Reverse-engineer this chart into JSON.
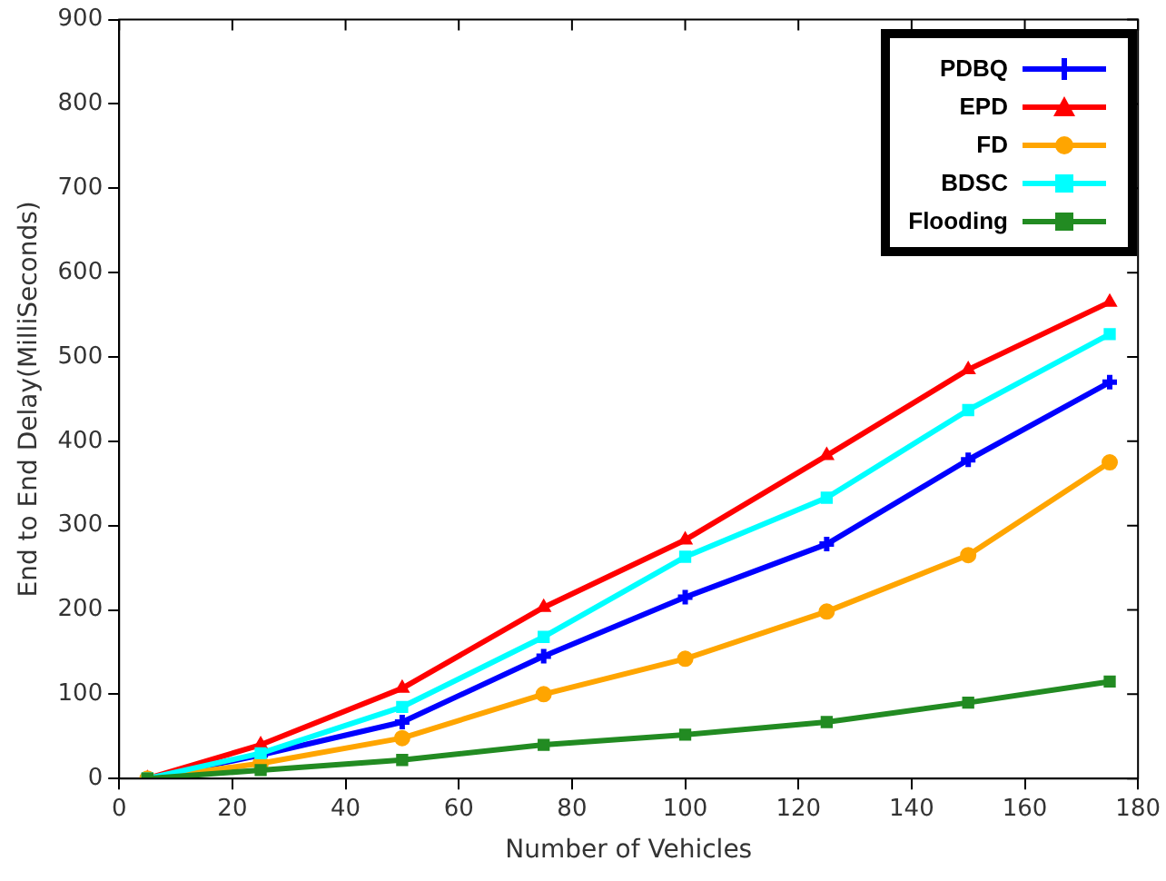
{
  "chart_data": {
    "type": "line",
    "xlabel": "Number of Vehicles",
    "ylabel": "End to End Delay(MilliSeconds)",
    "x": [
      5,
      25,
      50,
      75,
      100,
      125,
      150,
      175
    ],
    "xlim": [
      0,
      180
    ],
    "xticks": [
      0,
      20,
      40,
      60,
      80,
      100,
      120,
      140,
      160,
      180
    ],
    "ylim": [
      0,
      900
    ],
    "yticks": [
      0,
      100,
      200,
      300,
      400,
      500,
      600,
      700,
      800,
      900
    ],
    "grid": false,
    "legend": "top right",
    "line_style": "solid",
    "series": [
      {
        "name": "PDBQ",
        "color": "#0000ff",
        "marker": "cross",
        "values": [
          0,
          28,
          67,
          145,
          215,
          278,
          378,
          470
        ]
      },
      {
        "name": "EPD",
        "color": "#ff0000",
        "marker": "triangle",
        "values": [
          0,
          40,
          107,
          203,
          283,
          383,
          485,
          565
        ]
      },
      {
        "name": "FD",
        "color": "#ffa500",
        "marker": "circle",
        "values": [
          0,
          18,
          48,
          100,
          142,
          198,
          265,
          375
        ]
      },
      {
        "name": "BDSC",
        "color": "#00ffff",
        "marker": "square",
        "values": [
          0,
          30,
          85,
          168,
          263,
          333,
          437,
          527
        ]
      },
      {
        "name": "Flooding",
        "color": "#228b22",
        "marker": "square",
        "values": [
          0,
          10,
          22,
          40,
          52,
          67,
          90,
          115
        ]
      }
    ]
  }
}
